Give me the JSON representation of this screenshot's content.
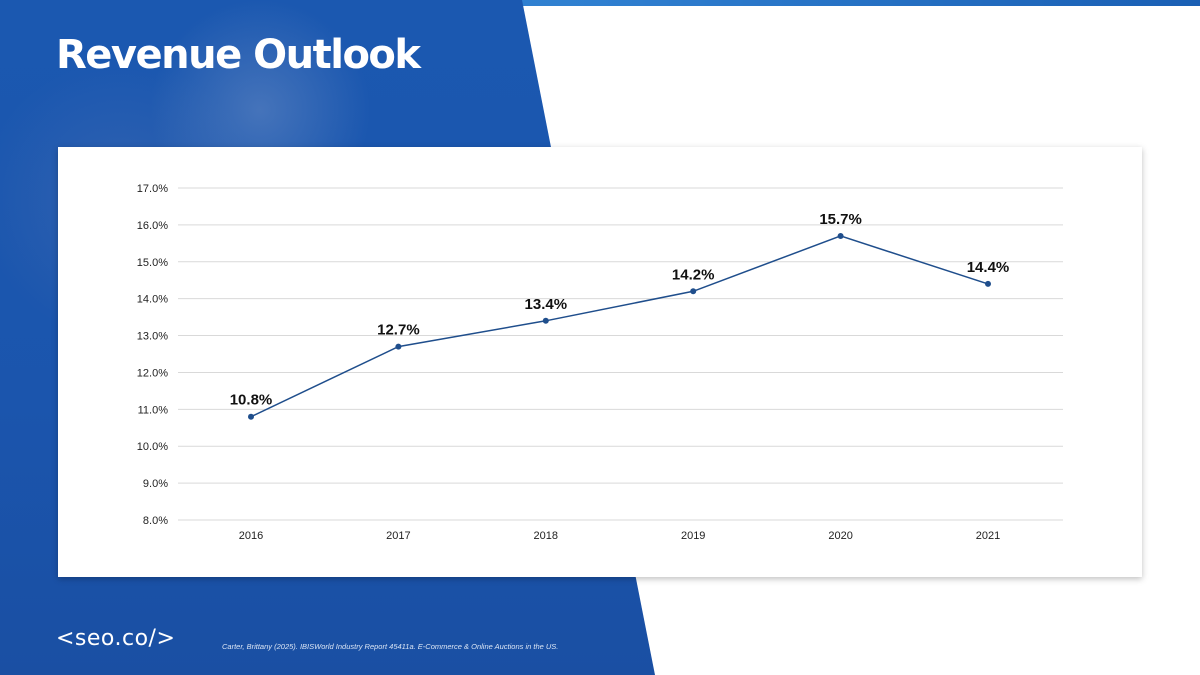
{
  "slide": {
    "title": "Revenue Outlook",
    "logo_text": "<seo.co/>",
    "citation": "Carter, Brittany (2025). IBISWorld Industry Report 45411a. E-Commerce & Online Auctions in the US."
  },
  "colors": {
    "panel_blue": "#1b55ad",
    "line": "#1f4e8c",
    "grid": "#d9d9d9"
  },
  "chart_data": {
    "type": "line",
    "categories": [
      "2016",
      "2017",
      "2018",
      "2019",
      "2020",
      "2021"
    ],
    "series": [
      {
        "values": [
          10.8,
          12.7,
          13.4,
          14.2,
          15.7,
          14.4
        ],
        "data_labels": [
          "10.8%",
          "12.7%",
          "13.4%",
          "14.2%",
          "15.7%",
          "14.4%"
        ]
      }
    ],
    "y_ticks": [
      "8.0%",
      "9.0%",
      "10.0%",
      "11.0%",
      "12.0%",
      "13.0%",
      "14.0%",
      "15.0%",
      "16.0%",
      "17.0%"
    ],
    "ylim": [
      8,
      17
    ],
    "grid": true,
    "legend": "none"
  }
}
